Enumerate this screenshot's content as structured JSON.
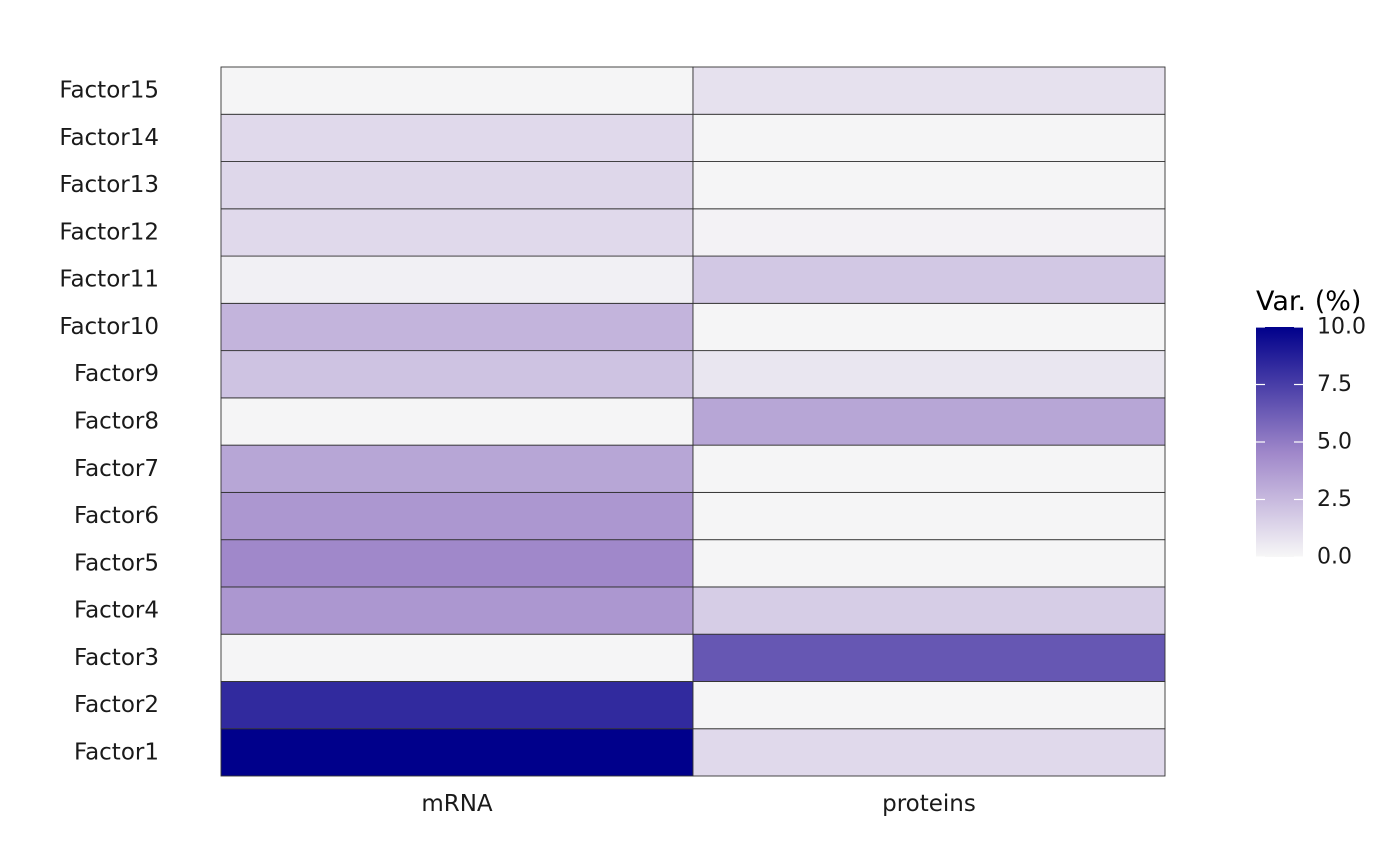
{
  "chart_data": {
    "type": "heatmap",
    "title": "",
    "xlabel": "",
    "ylabel": "",
    "x_categories": [
      "mRNA",
      "proteins"
    ],
    "y_categories": [
      "Factor1",
      "Factor2",
      "Factor3",
      "Factor4",
      "Factor5",
      "Factor6",
      "Factor7",
      "Factor8",
      "Factor9",
      "Factor10",
      "Factor11",
      "Factor12",
      "Factor13",
      "Factor14",
      "Factor15"
    ],
    "values": {
      "mRNA": [
        10.0,
        8.3,
        0.1,
        3.9,
        4.5,
        3.9,
        3.3,
        0.1,
        2.1,
        2.7,
        0.3,
        1.2,
        1.3,
        1.2,
        0.1
      ],
      "proteins": [
        1.2,
        0.1,
        6.5,
        1.7,
        0.1,
        0.1,
        0.1,
        3.3,
        0.7,
        0.1,
        1.9,
        0.2,
        0.1,
        0.1,
        0.9
      ]
    },
    "legend": {
      "title": "Var. (%)",
      "min": 0,
      "max": 10,
      "ticks": [
        "0.0",
        "2.5",
        "5.0",
        "7.5",
        "10.0"
      ],
      "tick_values": [
        0,
        2.5,
        5,
        7.5,
        10
      ],
      "placement": "right",
      "color_low": "#f7f7f7",
      "color_high": "#00008b"
    },
    "cell_border_color": "#333333"
  }
}
